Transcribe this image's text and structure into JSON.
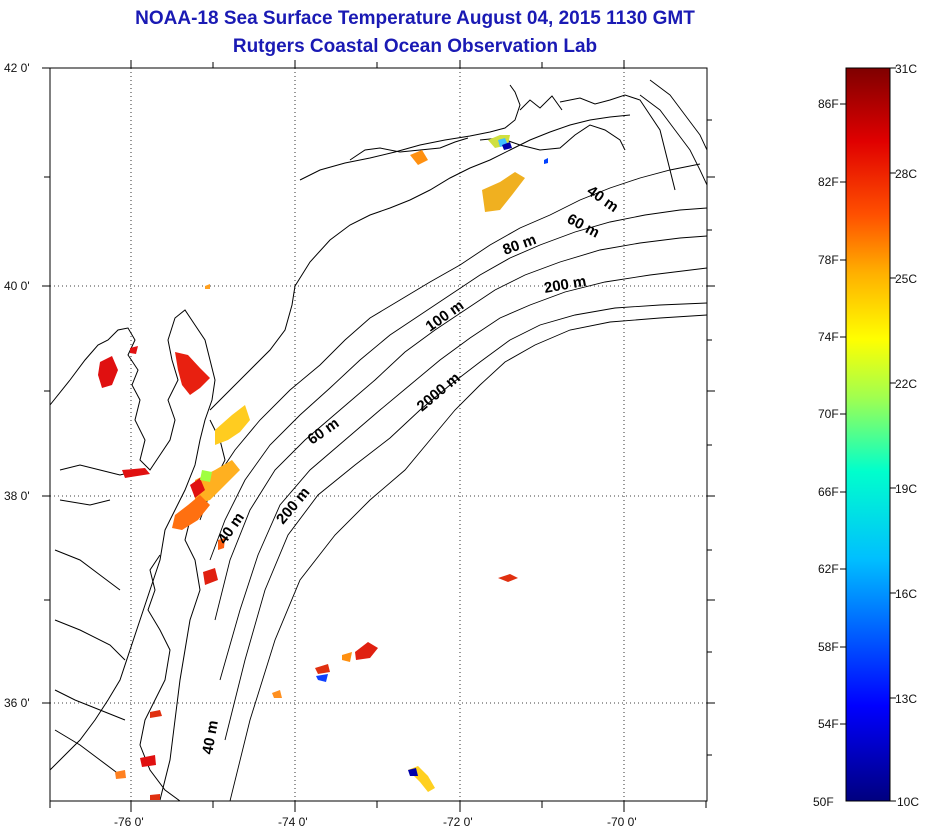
{
  "header": {
    "title_line1": "NOAA-18 Sea Surface Temperature August 04, 2015 1130 GMT",
    "title_line2": "Rutgers Coastal Ocean Observation Lab"
  },
  "map": {
    "lon_ticks": [
      "-76 0'",
      "-74 0'",
      "-72 0'",
      "-70 0'"
    ],
    "lat_ticks": [
      "42 0'",
      "40 0'",
      "38 0'",
      "36 0'"
    ],
    "depth_labels": [
      "40 m",
      "60 m",
      "80 m",
      "200 m",
      "100 m",
      "2000 m",
      "60 m",
      "40 m",
      "200 m",
      "40 m"
    ]
  },
  "colorbar": {
    "fahrenheit_labels": [
      "86F",
      "82F",
      "78F",
      "74F",
      "70F",
      "66F",
      "62F",
      "58F",
      "54F",
      "50F"
    ],
    "celsius_labels": [
      "31C",
      "28C",
      "25C",
      "22C",
      "19C",
      "16C",
      "13C",
      "10C"
    ],
    "range_f": [
      50,
      88
    ],
    "range_c": [
      10,
      31
    ],
    "colors": [
      "#00007f",
      "#0000ff",
      "#007fff",
      "#00ffff",
      "#7fff7f",
      "#ffff00",
      "#ff7f00",
      "#ff0000",
      "#7f0000"
    ]
  }
}
